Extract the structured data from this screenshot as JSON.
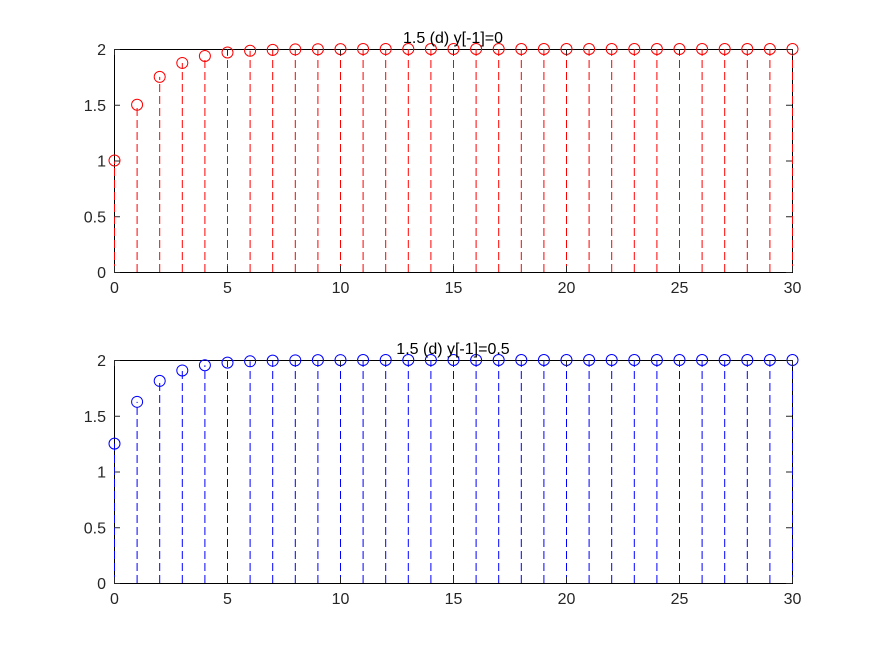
{
  "chart_data": [
    {
      "type": "stem",
      "title": "1.5 (d) y[-1]=0",
      "color": "#ff0000",
      "marker": "circle",
      "line_style": "dashed",
      "xlim": [
        0,
        30
      ],
      "ylim": [
        0,
        2
      ],
      "xticks": [
        0,
        5,
        10,
        15,
        20,
        25,
        30
      ],
      "yticks": [
        0,
        0.5,
        1,
        1.5,
        2
      ],
      "xtick_labels": [
        "0",
        "5",
        "10",
        "15",
        "20",
        "25",
        "30"
      ],
      "ytick_labels": [
        "0",
        "0.5",
        "1",
        "1.5",
        "2"
      ],
      "grid": false,
      "x": [
        0,
        1,
        2,
        3,
        4,
        5,
        6,
        7,
        8,
        9,
        10,
        11,
        12,
        13,
        14,
        15,
        16,
        17,
        18,
        19,
        20,
        21,
        22,
        23,
        24,
        25,
        26,
        27,
        28,
        29,
        30
      ],
      "y": [
        1.0,
        1.5,
        1.75,
        1.875,
        1.9375,
        1.96875,
        1.984375,
        1.9921875,
        1.99609375,
        1.998046875,
        1.9990234,
        1.9995117,
        1.9997559,
        1.9998779,
        1.999939,
        1.9999695,
        1.9999847,
        1.9999924,
        1.9999962,
        1.9999981,
        1.999999,
        1.9999995,
        1.9999998,
        1.9999999,
        1.9999999,
        2.0,
        2.0,
        2.0,
        2.0,
        2.0,
        2.0
      ]
    },
    {
      "type": "stem",
      "title": "1.5 (d) y[-1]=0.5",
      "color": "#0000ff",
      "marker": "circle",
      "line_style": "dashed",
      "xlim": [
        0,
        30
      ],
      "ylim": [
        0,
        2
      ],
      "xticks": [
        0,
        5,
        10,
        15,
        20,
        25,
        30
      ],
      "yticks": [
        0,
        0.5,
        1,
        1.5,
        2
      ],
      "xtick_labels": [
        "0",
        "5",
        "10",
        "15",
        "20",
        "25",
        "30"
      ],
      "ytick_labels": [
        "0",
        "0.5",
        "1",
        "1.5",
        "2"
      ],
      "grid": false,
      "x": [
        0,
        1,
        2,
        3,
        4,
        5,
        6,
        7,
        8,
        9,
        10,
        11,
        12,
        13,
        14,
        15,
        16,
        17,
        18,
        19,
        20,
        21,
        22,
        23,
        24,
        25,
        26,
        27,
        28,
        29,
        30
      ],
      "y": [
        1.25,
        1.625,
        1.8125,
        1.90625,
        1.953125,
        1.9765625,
        1.98828125,
        1.994140625,
        1.9970703,
        1.9985352,
        1.9992676,
        1.9996338,
        1.9998169,
        1.9999084,
        1.9999542,
        1.9999771,
        1.9999886,
        1.9999943,
        1.9999971,
        1.9999986,
        1.9999993,
        1.9999996,
        1.9999998,
        1.9999999,
        2.0,
        2.0,
        2.0,
        2.0,
        2.0,
        2.0,
        2.0
      ]
    }
  ]
}
